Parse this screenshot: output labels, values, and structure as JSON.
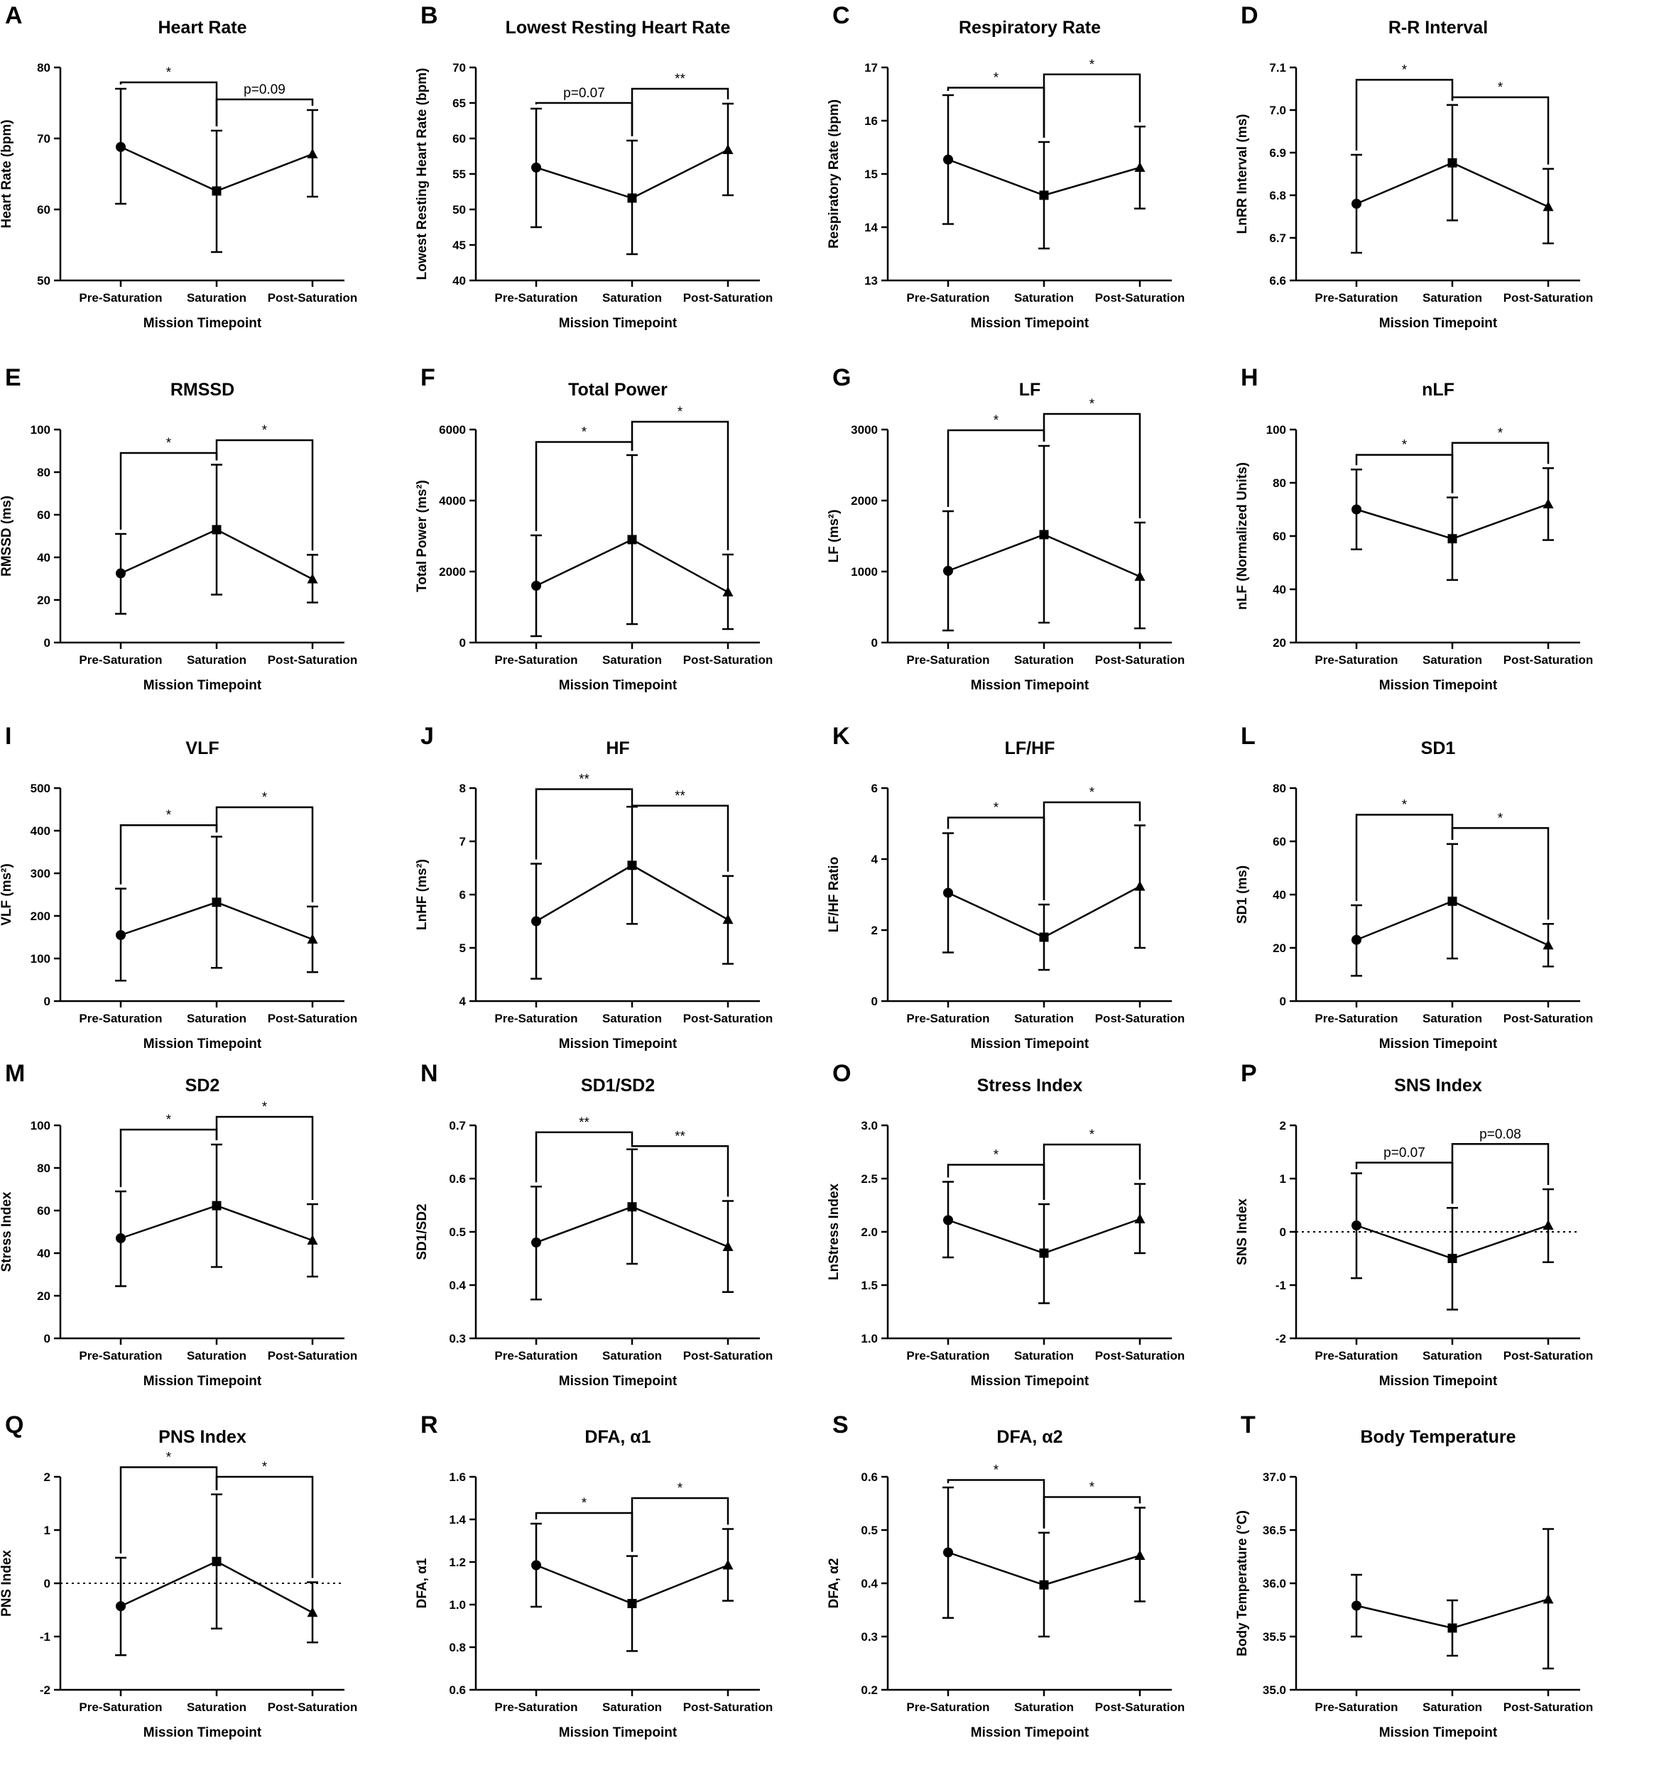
{
  "timepoints": [
    "Pre-Saturation",
    "Saturation",
    "Post-Saturation"
  ],
  "chart_data": [
    {
      "letter": "A",
      "type": "line",
      "title": "Heart Rate",
      "ylabel": "Heart Rate  (bpm)",
      "xlabel": "Mission Timepoint",
      "ylim": [
        50,
        80
      ],
      "yticks": [
        "50",
        "60",
        "70",
        "80"
      ],
      "mean": [
        68.8,
        62.6,
        67.8
      ],
      "err_low": [
        60.8,
        54.0,
        61.8
      ],
      "err_high": [
        77.0,
        71.1,
        74.0
      ],
      "brackets": [
        {
          "from": 0,
          "to": 1,
          "y": 77.9,
          "label": "*"
        },
        {
          "from": 1,
          "to": 2,
          "y": 75.5,
          "label": "p=0.09"
        }
      ]
    },
    {
      "letter": "B",
      "type": "line",
      "title": "Lowest Resting Heart Rate",
      "ylabel": "Lowest Resting Heart Rate (bpm)",
      "xlabel": "Mission Timepoint",
      "ylim": [
        40,
        70
      ],
      "yticks": [
        "40",
        "45",
        "50",
        "55",
        "60",
        "65",
        "70"
      ],
      "mean": [
        55.9,
        51.6,
        58.4
      ],
      "err_low": [
        47.5,
        43.7,
        52.0
      ],
      "err_high": [
        64.2,
        59.7,
        64.9
      ],
      "brackets": [
        {
          "from": 0,
          "to": 1,
          "y": 65.0,
          "label": "p=0.07"
        },
        {
          "from": 1,
          "to": 2,
          "y": 67.0,
          "label": "**"
        }
      ]
    },
    {
      "letter": "C",
      "type": "line",
      "title": "Respiratory Rate",
      "ylabel": "Respiratory Rate (bpm)",
      "xlabel": "Mission Timepoint",
      "ylim": [
        13,
        17
      ],
      "yticks": [
        "13",
        "14",
        "15",
        "16",
        "17"
      ],
      "mean": [
        15.27,
        14.6,
        15.12
      ],
      "err_low": [
        14.06,
        13.6,
        14.35
      ],
      "err_high": [
        16.48,
        15.6,
        15.89
      ],
      "brackets": [
        {
          "from": 0,
          "to": 1,
          "y": 16.62,
          "label": "*"
        },
        {
          "from": 1,
          "to": 2,
          "y": 16.87,
          "label": "*"
        }
      ]
    },
    {
      "letter": "D",
      "type": "line",
      "title": "R-R Interval",
      "ylabel": "LnRR Interval  (ms)",
      "xlabel": "Mission Timepoint",
      "ylim": [
        6.6,
        7.1
      ],
      "yticks": [
        "6.6",
        "6.7",
        "6.8",
        "6.9",
        "7.0",
        "7.1"
      ],
      "mean": [
        6.78,
        6.876,
        6.773
      ],
      "err_low": [
        6.665,
        6.741,
        6.687
      ],
      "err_high": [
        6.895,
        7.012,
        6.862
      ],
      "brackets": [
        {
          "from": 0,
          "to": 1,
          "y": 7.071,
          "label": "*"
        },
        {
          "from": 1,
          "to": 2,
          "y": 7.03,
          "label": "*"
        }
      ]
    },
    {
      "letter": "E",
      "type": "line",
      "title": "RMSSD",
      "ylabel": "RMSSD  (ms)",
      "xlabel": "Mission Timepoint",
      "ylim": [
        0,
        100
      ],
      "yticks": [
        "0",
        "20",
        "40",
        "60",
        "80",
        "100"
      ],
      "mean": [
        32.5,
        53.0,
        29.8
      ],
      "err_low": [
        13.5,
        22.5,
        18.8
      ],
      "err_high": [
        51.0,
        83.5,
        41.2
      ],
      "brackets": [
        {
          "from": 0,
          "to": 1,
          "y": 89.0,
          "label": "*"
        },
        {
          "from": 1,
          "to": 2,
          "y": 95.0,
          "label": "*"
        }
      ]
    },
    {
      "letter": "F",
      "type": "line",
      "title": "Total Power",
      "ylabel": "Total Power (ms²)",
      "xlabel": "Mission Timepoint",
      "ylim": [
        0,
        6000
      ],
      "yticks": [
        "0",
        "2000",
        "4000",
        "6000"
      ],
      "mean": [
        1600,
        2900,
        1420
      ],
      "err_low": [
        180,
        520,
        380
      ],
      "err_high": [
        3020,
        5280,
        2480
      ],
      "brackets": [
        {
          "from": 0,
          "to": 1,
          "y": 5650,
          "label": "*"
        },
        {
          "from": 1,
          "to": 2,
          "y": 6220,
          "label": "*"
        }
      ]
    },
    {
      "letter": "G",
      "type": "line",
      "title": "LF",
      "ylabel": "LF  (ms²)",
      "xlabel": "Mission Timepoint",
      "ylim": [
        0,
        3000
      ],
      "yticks": [
        "0",
        "1000",
        "2000",
        "3000"
      ],
      "mean": [
        1010,
        1520,
        930
      ],
      "err_low": [
        170,
        280,
        200
      ],
      "err_high": [
        1850,
        2770,
        1690
      ],
      "brackets": [
        {
          "from": 0,
          "to": 1,
          "y": 2990,
          "label": "*"
        },
        {
          "from": 1,
          "to": 2,
          "y": 3220,
          "label": "*"
        }
      ]
    },
    {
      "letter": "H",
      "type": "line",
      "title": "nLF",
      "ylabel": "nLF (Normalized Units)",
      "xlabel": "Mission Timepoint",
      "ylim": [
        20,
        100
      ],
      "yticks": [
        "20",
        "40",
        "60",
        "80",
        "100"
      ],
      "mean": [
        70.0,
        59.0,
        72.0
      ],
      "err_low": [
        55.0,
        43.5,
        58.5
      ],
      "err_high": [
        85.0,
        74.5,
        85.5
      ],
      "brackets": [
        {
          "from": 0,
          "to": 1,
          "y": 90.5,
          "label": "*"
        },
        {
          "from": 1,
          "to": 2,
          "y": 95.0,
          "label": "*"
        }
      ]
    },
    {
      "letter": "I",
      "type": "line",
      "title": "VLF",
      "ylabel": "VLF  (ms²)",
      "xlabel": "Mission Timepoint",
      "ylim": [
        0,
        500
      ],
      "yticks": [
        "0",
        "100",
        "200",
        "300",
        "400",
        "500"
      ],
      "mean": [
        155,
        232,
        145
      ],
      "err_low": [
        48,
        78,
        68
      ],
      "err_high": [
        264,
        386,
        222
      ],
      "brackets": [
        {
          "from": 0,
          "to": 1,
          "y": 413,
          "label": "*"
        },
        {
          "from": 1,
          "to": 2,
          "y": 455,
          "label": "*"
        }
      ]
    },
    {
      "letter": "J",
      "type": "line",
      "title": "HF",
      "ylabel": "LnHF  (ms²)",
      "xlabel": "Mission Timepoint",
      "ylim": [
        4,
        8
      ],
      "yticks": [
        "4",
        "5",
        "6",
        "7",
        "8"
      ],
      "mean": [
        5.5,
        6.55,
        5.53
      ],
      "err_low": [
        4.42,
        5.45,
        4.7
      ],
      "err_high": [
        6.58,
        7.65,
        6.35
      ],
      "brackets": [
        {
          "from": 0,
          "to": 1,
          "y": 7.98,
          "label": "**"
        },
        {
          "from": 1,
          "to": 2,
          "y": 7.67,
          "label": "**"
        }
      ]
    },
    {
      "letter": "K",
      "type": "line",
      "title": "LF/HF",
      "ylabel": "LF/HF Ratio",
      "xlabel": "Mission Timepoint",
      "ylim": [
        0,
        6
      ],
      "yticks": [
        "0",
        "2",
        "4",
        "6"
      ],
      "mean": [
        3.05,
        1.8,
        3.23
      ],
      "err_low": [
        1.37,
        0.88,
        1.5
      ],
      "err_high": [
        4.73,
        2.72,
        4.95
      ],
      "brackets": [
        {
          "from": 0,
          "to": 1,
          "y": 5.17,
          "label": "*"
        },
        {
          "from": 1,
          "to": 2,
          "y": 5.6,
          "label": "*"
        }
      ]
    },
    {
      "letter": "L",
      "type": "line",
      "title": "SD1",
      "ylabel": "SD1 (ms)",
      "xlabel": "Mission Timepoint",
      "ylim": [
        0,
        80
      ],
      "yticks": [
        "0",
        "20",
        "40",
        "60",
        "80"
      ],
      "mean": [
        23.0,
        37.5,
        21.0
      ],
      "err_low": [
        9.5,
        16.0,
        13.0
      ],
      "err_high": [
        36.0,
        59.0,
        29.0
      ],
      "brackets": [
        {
          "from": 0,
          "to": 1,
          "y": 70.0,
          "label": "*"
        },
        {
          "from": 1,
          "to": 2,
          "y": 65.0,
          "label": "*"
        }
      ]
    },
    {
      "letter": "M",
      "type": "line",
      "title": "SD2",
      "ylabel": "Stress Index",
      "xlabel": "Mission Timepoint",
      "ylim": [
        0,
        100
      ],
      "yticks": [
        "0",
        "20",
        "40",
        "60",
        "80",
        "100"
      ],
      "mean": [
        47.0,
        62.3,
        46.0
      ],
      "err_low": [
        24.5,
        33.5,
        29.0
      ],
      "err_high": [
        69.0,
        91.0,
        63.0
      ],
      "brackets": [
        {
          "from": 0,
          "to": 1,
          "y": 98.0,
          "label": "*"
        },
        {
          "from": 1,
          "to": 2,
          "y": 104.0,
          "label": "*"
        }
      ]
    },
    {
      "letter": "N",
      "type": "line",
      "title": "SD1/SD2",
      "ylabel": "SD1/SD2",
      "xlabel": "Mission Timepoint",
      "ylim": [
        0.3,
        0.7
      ],
      "yticks": [
        "0.3",
        "0.4",
        "0.5",
        "0.6",
        "0.7"
      ],
      "mean": [
        0.48,
        0.547,
        0.472
      ],
      "err_low": [
        0.373,
        0.44,
        0.387
      ],
      "err_high": [
        0.585,
        0.655,
        0.558
      ],
      "brackets": [
        {
          "from": 0,
          "to": 1,
          "y": 0.687,
          "label": "**"
        },
        {
          "from": 1,
          "to": 2,
          "y": 0.661,
          "label": "**"
        }
      ]
    },
    {
      "letter": "O",
      "type": "line",
      "title": "Stress Index",
      "ylabel": "LnStress Index",
      "xlabel": "Mission Timepoint",
      "ylim": [
        1.0,
        3.0
      ],
      "yticks": [
        "1.0",
        "1.5",
        "2.0",
        "2.5",
        "3.0"
      ],
      "mean": [
        2.11,
        1.8,
        2.12
      ],
      "err_low": [
        1.76,
        1.33,
        1.8
      ],
      "err_high": [
        2.47,
        2.26,
        2.45
      ],
      "brackets": [
        {
          "from": 0,
          "to": 1,
          "y": 2.63,
          "label": "*"
        },
        {
          "from": 1,
          "to": 2,
          "y": 2.82,
          "label": "*"
        }
      ]
    },
    {
      "letter": "P",
      "type": "line",
      "title": "SNS Index",
      "ylabel": "SNS Index",
      "xlabel": "Mission Timepoint",
      "ylim": [
        -2,
        2
      ],
      "yticks": [
        "-2",
        "-1",
        "0",
        "1",
        "2"
      ],
      "mean": [
        0.12,
        -0.5,
        0.12
      ],
      "err_low": [
        -0.87,
        -1.46,
        -0.57
      ],
      "err_high": [
        1.1,
        0.45,
        0.8
      ],
      "brackets": [
        {
          "from": 0,
          "to": 1,
          "y": 1.3,
          "label": "p=0.07"
        },
        {
          "from": 1,
          "to": 2,
          "y": 1.65,
          "label": "p=0.08"
        }
      ],
      "zero_line": true
    },
    {
      "letter": "Q",
      "type": "line",
      "title": "PNS Index",
      "ylabel": "PNS Index",
      "xlabel": "Mission Timepoint",
      "ylim": [
        -2,
        2
      ],
      "yticks": [
        "-2",
        "-1",
        "0",
        "1",
        "2"
      ],
      "mean": [
        -0.43,
        0.41,
        -0.55
      ],
      "err_low": [
        -1.35,
        -0.85,
        -1.11
      ],
      "err_high": [
        0.48,
        1.67,
        0.02
      ],
      "brackets": [
        {
          "from": 0,
          "to": 1,
          "y": 2.18,
          "label": "*"
        },
        {
          "from": 1,
          "to": 2,
          "y": 2.0,
          "label": "*"
        }
      ],
      "zero_line": true
    },
    {
      "letter": "R",
      "type": "line",
      "title": "DFA, α1",
      "ylabel": "DFA, α1",
      "xlabel": "Mission Timepoint",
      "ylim": [
        0.6,
        1.6
      ],
      "yticks": [
        "0.6",
        "0.8",
        "1.0",
        "1.2",
        "1.4",
        "1.6"
      ],
      "mean": [
        1.185,
        1.005,
        1.185
      ],
      "err_low": [
        0.99,
        0.782,
        1.018
      ],
      "err_high": [
        1.38,
        1.228,
        1.355
      ],
      "brackets": [
        {
          "from": 0,
          "to": 1,
          "y": 1.43,
          "label": "*"
        },
        {
          "from": 1,
          "to": 2,
          "y": 1.5,
          "label": "*"
        }
      ]
    },
    {
      "letter": "S",
      "type": "line",
      "title": "DFA, α2",
      "ylabel": "DFA, α2",
      "xlabel": "Mission Timepoint",
      "ylim": [
        0.2,
        0.6
      ],
      "yticks": [
        "0.2",
        "0.3",
        "0.4",
        "0.5",
        "0.6"
      ],
      "mean": [
        0.458,
        0.397,
        0.452
      ],
      "err_low": [
        0.335,
        0.3,
        0.366
      ],
      "err_high": [
        0.58,
        0.495,
        0.542
      ],
      "brackets": [
        {
          "from": 0,
          "to": 1,
          "y": 0.594,
          "label": "*"
        },
        {
          "from": 1,
          "to": 2,
          "y": 0.562,
          "label": "*"
        }
      ]
    },
    {
      "letter": "T",
      "type": "line",
      "title": "Body Temperature",
      "ylabel": "Body Temperature (°C)",
      "xlabel": "Mission Timepoint",
      "ylim": [
        35.0,
        37.0
      ],
      "yticks": [
        "35.0",
        "35.5",
        "36.0",
        "36.5",
        "37.0"
      ],
      "mean": [
        35.79,
        35.58,
        35.85
      ],
      "err_low": [
        35.5,
        35.32,
        35.2
      ],
      "err_high": [
        36.08,
        35.84,
        36.51
      ],
      "brackets": []
    }
  ]
}
